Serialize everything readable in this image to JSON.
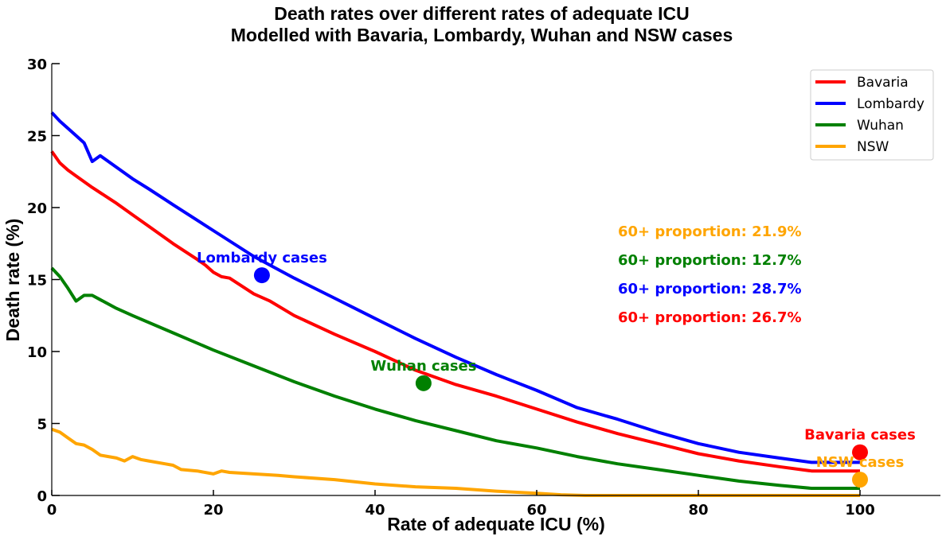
{
  "chart_data": {
    "type": "line",
    "title_line1": "Death rates over different rates of adequate ICU",
    "title_line2": "Modelled with Bavaria, Lombardy, Wuhan and NSW cases",
    "xlabel": "Rate of adequate ICU (%)",
    "ylabel": "Death rate (%)",
    "xlim": [
      0,
      110
    ],
    "ylim": [
      0,
      30
    ],
    "xticks": [
      0,
      20,
      40,
      60,
      80,
      100
    ],
    "yticks": [
      0,
      5,
      10,
      15,
      20,
      25,
      30
    ],
    "grid": false,
    "legend_position": "top-right",
    "series": [
      {
        "name": "Bavaria",
        "color": "#ff0000",
        "x": [
          0,
          1,
          2,
          3,
          5,
          8,
          10,
          12,
          15,
          18,
          19,
          20,
          21,
          22,
          25,
          27,
          30,
          35,
          40,
          45,
          50,
          55,
          60,
          65,
          70,
          75,
          80,
          85,
          90,
          94,
          100
        ],
        "y": [
          23.9,
          23.1,
          22.6,
          22.2,
          21.4,
          20.3,
          19.5,
          18.7,
          17.5,
          16.4,
          16.0,
          15.5,
          15.2,
          15.1,
          14.0,
          13.5,
          12.5,
          11.2,
          10.0,
          8.7,
          7.7,
          6.9,
          6.0,
          5.1,
          4.3,
          3.6,
          2.9,
          2.4,
          2.0,
          1.7,
          1.7
        ]
      },
      {
        "name": "Lombardy",
        "color": "#0000ff",
        "x": [
          0,
          1,
          2,
          3,
          4,
          5,
          6,
          8,
          10,
          12,
          15,
          20,
          25,
          30,
          35,
          40,
          45,
          50,
          55,
          60,
          65,
          70,
          75,
          80,
          85,
          90,
          94,
          100
        ],
        "y": [
          26.6,
          26.0,
          25.5,
          25.0,
          24.5,
          23.2,
          23.6,
          22.8,
          22.0,
          21.3,
          20.2,
          18.4,
          16.6,
          15.1,
          13.7,
          12.3,
          10.9,
          9.6,
          8.4,
          7.3,
          6.1,
          5.3,
          4.4,
          3.6,
          3.0,
          2.6,
          2.3,
          2.3
        ]
      },
      {
        "name": "Wuhan",
        "color": "#008000",
        "x": [
          0,
          1,
          2,
          3,
          4,
          5,
          6,
          8,
          10,
          15,
          20,
          25,
          30,
          35,
          40,
          45,
          50,
          55,
          60,
          65,
          70,
          75,
          80,
          85,
          90,
          94,
          100
        ],
        "y": [
          15.8,
          15.2,
          14.4,
          13.5,
          13.9,
          13.9,
          13.6,
          13.0,
          12.5,
          11.3,
          10.1,
          9.0,
          7.9,
          6.9,
          6.0,
          5.2,
          4.5,
          3.8,
          3.3,
          2.7,
          2.2,
          1.8,
          1.4,
          1.0,
          0.7,
          0.5,
          0.5
        ]
      },
      {
        "name": "NSW",
        "color": "#ffa500",
        "x": [
          0,
          1,
          2,
          3,
          4,
          5,
          6,
          7,
          8,
          9,
          10,
          11,
          12,
          14,
          15,
          16,
          18,
          20,
          21,
          22,
          25,
          28,
          30,
          35,
          40,
          45,
          50,
          55,
          60,
          63,
          66,
          70,
          80,
          90,
          100
        ],
        "y": [
          4.6,
          4.4,
          4.0,
          3.6,
          3.5,
          3.2,
          2.8,
          2.7,
          2.6,
          2.4,
          2.7,
          2.5,
          2.4,
          2.2,
          2.1,
          1.8,
          1.7,
          1.5,
          1.7,
          1.6,
          1.5,
          1.4,
          1.3,
          1.1,
          0.8,
          0.6,
          0.5,
          0.3,
          0.15,
          0.05,
          0.0,
          0.0,
          0.0,
          0.0,
          0.0
        ]
      }
    ],
    "points": [
      {
        "label": "Lombardy cases",
        "x": 26.0,
        "y": 15.3,
        "color": "#0000ff",
        "label_dx": 0,
        "label_dy": -16,
        "anchor": "middle"
      },
      {
        "label": "Wuhan cases",
        "x": 46.0,
        "y": 7.8,
        "color": "#008000",
        "label_dx": 0,
        "label_dy": -16,
        "anchor": "middle"
      },
      {
        "label": "Bavaria cases",
        "x": 100.0,
        "y": 3.0,
        "color": "#ff0000",
        "label_dx": 0,
        "label_dy": -16,
        "anchor": "middle"
      },
      {
        "label": "NSW cases",
        "x": 100.0,
        "y": 1.1,
        "color": "#ffa500",
        "label_dx": 0,
        "label_dy": -16,
        "anchor": "middle"
      }
    ],
    "annotations": [
      {
        "text": "60+ proportion: 21.9%",
        "color": "#ffa500"
      },
      {
        "text": "60+ proportion: 12.7%",
        "color": "#008000"
      },
      {
        "text": "60+ proportion: 28.7%",
        "color": "#0000ff"
      },
      {
        "text": "60+ proportion: 26.7%",
        "color": "#ff0000"
      }
    ]
  }
}
